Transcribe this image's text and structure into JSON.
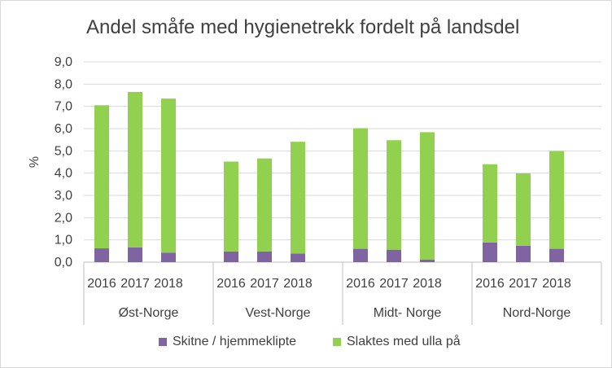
{
  "chart_data": {
    "type": "bar",
    "stacked": true,
    "title": "Andel småfe med hygienetrekk fordelt på landsdel",
    "ylabel": "%",
    "ylim": [
      0,
      9
    ],
    "yticks": [
      "0,0",
      "1,0",
      "2,0",
      "3,0",
      "4,0",
      "5,0",
      "6,0",
      "7,0",
      "8,0",
      "9,0"
    ],
    "grid": true,
    "legend_position": "bottom",
    "groups": [
      "Øst-Norge",
      "Vest-Norge",
      "Midt- Norge",
      "Nord-Norge"
    ],
    "years": [
      "2016",
      "2017",
      "2018"
    ],
    "series": [
      {
        "name": "Skitne / hjemmeklipte",
        "color": "#8064a2",
        "values": [
          [
            0.62,
            0.66,
            0.43
          ],
          [
            0.48,
            0.48,
            0.39
          ],
          [
            0.6,
            0.56,
            0.12
          ],
          [
            0.88,
            0.74,
            0.6
          ]
        ]
      },
      {
        "name": "Slaktes med ulla på",
        "color": "#92d050",
        "values": [
          [
            6.43,
            6.99,
            6.92
          ],
          [
            4.04,
            4.18,
            5.02
          ],
          [
            5.42,
            4.92,
            5.72
          ],
          [
            3.52,
            3.25,
            4.39
          ]
        ]
      }
    ]
  }
}
